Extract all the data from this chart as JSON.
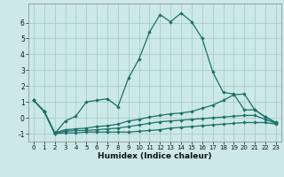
{
  "xlabel": "Humidex (Indice chaleur)",
  "background_color": "#cce8e8",
  "grid_color": "#aacccc",
  "line_color": "#1a7068",
  "xlim": [
    -0.5,
    23.5
  ],
  "ylim": [
    -1.5,
    7.2
  ],
  "xticks": [
    0,
    1,
    2,
    3,
    4,
    5,
    6,
    7,
    8,
    9,
    10,
    11,
    12,
    13,
    14,
    15,
    16,
    17,
    18,
    19,
    20,
    21,
    22,
    23
  ],
  "yticks": [
    -1,
    0,
    1,
    2,
    3,
    4,
    5,
    6
  ],
  "line1_x": [
    0,
    1,
    2,
    3,
    4,
    5,
    6,
    7,
    8,
    9,
    10,
    11,
    12,
    13,
    14,
    15,
    16,
    17,
    18,
    19,
    20,
    21,
    22,
    23
  ],
  "line1_y": [
    1.1,
    0.4,
    -1.0,
    -0.2,
    0.1,
    1.0,
    1.1,
    1.2,
    0.7,
    2.5,
    3.7,
    5.4,
    6.5,
    6.05,
    6.6,
    6.05,
    5.0,
    2.9,
    1.6,
    1.5,
    0.5,
    0.5,
    0.05,
    -0.3
  ],
  "line2_x": [
    0,
    1,
    2,
    3,
    4,
    5,
    6,
    7,
    8,
    9,
    10,
    11,
    12,
    13,
    14,
    15,
    16,
    17,
    18,
    19,
    20,
    21,
    22,
    23
  ],
  "line2_y": [
    1.1,
    0.4,
    -0.95,
    -0.75,
    -0.7,
    -0.65,
    -0.55,
    -0.5,
    -0.4,
    -0.2,
    -0.1,
    0.05,
    0.15,
    0.25,
    0.3,
    0.4,
    0.6,
    0.8,
    1.1,
    1.45,
    1.5,
    0.5,
    0.05,
    -0.3
  ],
  "line3_x": [
    0,
    1,
    2,
    3,
    4,
    5,
    6,
    7,
    8,
    9,
    10,
    11,
    12,
    13,
    14,
    15,
    16,
    17,
    18,
    19,
    20,
    21,
    22,
    23
  ],
  "line3_y": [
    1.1,
    0.4,
    -0.95,
    -0.85,
    -0.8,
    -0.8,
    -0.75,
    -0.7,
    -0.65,
    -0.55,
    -0.45,
    -0.35,
    -0.25,
    -0.2,
    -0.15,
    -0.1,
    -0.05,
    0.0,
    0.05,
    0.1,
    0.15,
    0.15,
    -0.1,
    -0.35
  ],
  "line4_x": [
    0,
    1,
    2,
    3,
    4,
    5,
    6,
    7,
    8,
    9,
    10,
    11,
    12,
    13,
    14,
    15,
    16,
    17,
    18,
    19,
    20,
    21,
    22,
    23
  ],
  "line4_y": [
    1.1,
    0.4,
    -1.0,
    -0.95,
    -0.95,
    -0.9,
    -0.9,
    -0.9,
    -0.9,
    -0.9,
    -0.85,
    -0.8,
    -0.75,
    -0.65,
    -0.6,
    -0.55,
    -0.5,
    -0.45,
    -0.4,
    -0.35,
    -0.3,
    -0.3,
    -0.3,
    -0.4
  ]
}
